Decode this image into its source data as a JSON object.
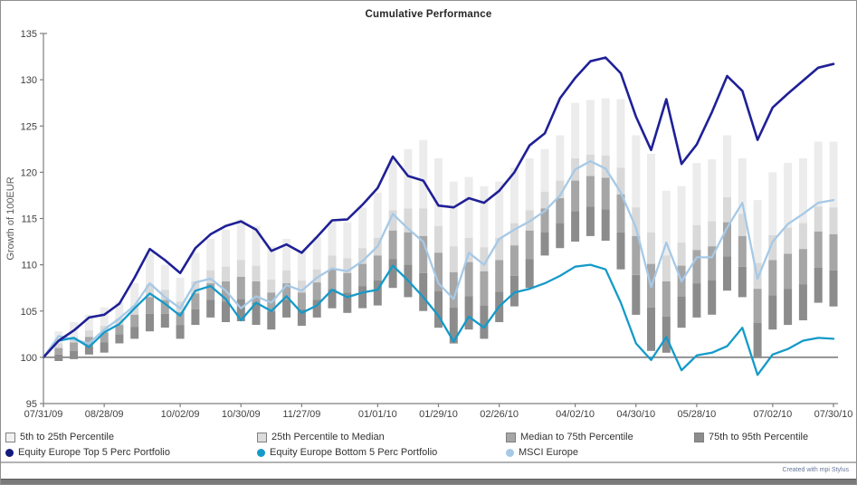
{
  "chart_data": {
    "type": "combo (floating percentile bar bands + line series)",
    "title": "Cumulative Performance",
    "ylabel": "Growth of 100EUR",
    "xlabel": "",
    "ylim": [
      95,
      135
    ],
    "y_ticks": [
      95,
      100,
      105,
      110,
      115,
      120,
      125,
      130,
      135
    ],
    "baseline": 100,
    "grid": "off",
    "legend_position": "bottom",
    "x_unit": "weekly, 53 points (week 0 = 07/31/09 .. week 52 = 07/30/10)",
    "x_tick_labels": [
      "07/31/09",
      "08/28/09",
      "10/02/09",
      "10/30/09",
      "11/27/09",
      "01/01/10",
      "01/29/10",
      "02/26/10",
      "04/02/10",
      "04/30/10",
      "05/28/10",
      "07/02/10",
      "07/30/10"
    ],
    "x_tick_weeks": [
      0,
      4,
      9,
      13,
      17,
      22,
      26,
      30,
      35,
      39,
      43,
      48,
      52
    ],
    "bands": {
      "start_week": 1,
      "segments": [
        {
          "label": "5th to 25th Percentile",
          "from": "p5",
          "to": "p25",
          "color": "#ececec"
        },
        {
          "label": "25th Percentile to Median",
          "from": "p25",
          "to": "p50",
          "color": "#d9d9d9"
        },
        {
          "label": "Median to 75th Percentile",
          "from": "p50",
          "to": "p75",
          "color": "#a6a6a6"
        },
        {
          "label": "75th to 95th Percentile",
          "from": "p75",
          "to": "p95",
          "color": "#8c8c8c"
        }
      ],
      "p5": [
        102.8,
        103.8,
        104.6,
        105.4,
        106.0,
        108.0,
        111.3,
        110.0,
        108.6,
        111.3,
        112.8,
        113.8,
        114.9,
        114.2,
        112.0,
        112.8,
        111.5,
        113.0,
        114.8,
        114.6,
        116.2,
        117.8,
        121.5,
        122.5,
        123.5,
        121.5,
        119.0,
        119.5,
        118.5,
        119.0,
        120.5,
        121.5,
        122.5,
        124.0,
        127.5,
        127.8,
        128.0,
        127.9,
        124.0,
        122.0,
        118.0,
        118.5,
        121.0,
        121.4,
        124.0,
        121.5,
        117.0,
        120.0,
        121.0,
        121.5,
        123.3,
        123.3
      ],
      "p25": [
        101.5,
        102.2,
        102.9,
        103.4,
        104.2,
        105.6,
        107.9,
        107.3,
        106.0,
        108.2,
        109.4,
        109.8,
        110.5,
        109.9,
        108.4,
        109.4,
        108.3,
        109.5,
        111.0,
        110.7,
        111.8,
        112.9,
        115.9,
        116.1,
        116.1,
        114.2,
        112.0,
        112.9,
        111.9,
        112.9,
        114.5,
        115.9,
        117.9,
        119.1,
        121.5,
        121.9,
        121.8,
        120.5,
        116.2,
        113.5,
        111.0,
        112.4,
        114.3,
        114.7,
        117.3,
        115.5,
        110.2,
        113.2,
        114.0,
        114.5,
        116.3,
        116.2
      ],
      "p50": [
        101.0,
        101.6,
        102.2,
        102.7,
        103.5,
        104.6,
        106.5,
        106.2,
        104.9,
        106.9,
        108.0,
        108.2,
        108.7,
        108.2,
        107.0,
        108.0,
        107.0,
        108.1,
        109.5,
        109.1,
        110.1,
        111.0,
        113.7,
        113.5,
        113.1,
        111.3,
        109.2,
        110.3,
        109.3,
        110.5,
        112.1,
        113.7,
        116.1,
        117.2,
        119.1,
        119.6,
        119.4,
        117.6,
        113.1,
        110.1,
        108.2,
        109.9,
        111.6,
        112.0,
        114.6,
        113.1,
        107.4,
        110.5,
        111.2,
        111.7,
        113.6,
        113.3
      ],
      "p75": [
        100.3,
        100.7,
        101.2,
        101.6,
        102.5,
        103.3,
        104.7,
        104.7,
        103.5,
        105.2,
        106.2,
        106.0,
        106.3,
        105.9,
        105.0,
        106.2,
        105.2,
        106.2,
        107.4,
        107.0,
        107.7,
        108.3,
        110.6,
        110.0,
        109.1,
        107.2,
        105.4,
        106.6,
        105.6,
        107.1,
        108.8,
        110.6,
        113.5,
        114.5,
        115.8,
        116.3,
        116.0,
        113.5,
        108.9,
        105.4,
        104.4,
        106.6,
        108.0,
        108.3,
        110.9,
        109.8,
        103.7,
        106.7,
        107.4,
        107.9,
        109.7,
        109.4
      ],
      "p95": [
        99.6,
        99.8,
        100.3,
        100.5,
        101.5,
        102.0,
        102.8,
        103.2,
        102.0,
        103.5,
        104.3,
        103.8,
        103.9,
        103.5,
        103.0,
        104.3,
        103.4,
        104.3,
        105.3,
        104.8,
        105.3,
        105.6,
        107.5,
        106.5,
        105.0,
        103.2,
        101.5,
        103.0,
        102.0,
        103.8,
        105.5,
        107.5,
        111.0,
        111.8,
        112.5,
        113.1,
        112.6,
        109.5,
        104.6,
        100.7,
        100.5,
        103.2,
        104.3,
        104.6,
        107.2,
        106.5,
        99.9,
        103.0,
        103.5,
        104.0,
        105.9,
        105.5
      ]
    },
    "series": [
      {
        "name": "Equity Europe Top 5 Perc Portfolio",
        "color": "#1f2096",
        "width": 2.6,
        "values": [
          100.0,
          101.8,
          102.9,
          104.3,
          104.6,
          105.8,
          108.6,
          111.7,
          110.5,
          109.1,
          111.8,
          113.3,
          114.2,
          114.7,
          113.8,
          111.5,
          112.2,
          111.3,
          113.0,
          114.8,
          114.9,
          116.5,
          118.3,
          121.7,
          119.6,
          119.1,
          116.4,
          116.2,
          117.2,
          116.7,
          118.0,
          120.0,
          122.9,
          124.2,
          128.0,
          130.2,
          132.0,
          132.4,
          130.7,
          126.0,
          122.4,
          127.9,
          120.9,
          123.0,
          126.5,
          130.4,
          128.8,
          123.5,
          127.0,
          128.5,
          129.9,
          131.3,
          131.7
        ]
      },
      {
        "name": "Equity Europe Bottom 5 Perc Portfolio",
        "color": "#149ac9",
        "width": 2.3,
        "values": [
          100.0,
          101.8,
          102.1,
          101.1,
          102.7,
          103.6,
          105.3,
          106.9,
          105.8,
          104.5,
          107.2,
          107.7,
          106.3,
          104.0,
          105.9,
          105.0,
          106.6,
          104.8,
          105.6,
          107.3,
          106.5,
          107.0,
          107.3,
          109.9,
          108.3,
          106.5,
          104.5,
          101.7,
          104.4,
          103.2,
          105.5,
          107.0,
          107.4,
          108.0,
          108.8,
          109.8,
          110.0,
          109.5,
          105.9,
          101.5,
          99.7,
          102.2,
          98.6,
          100.2,
          100.5,
          101.2,
          103.2,
          98.1,
          100.3,
          100.9,
          101.8,
          102.1,
          102.0
        ]
      },
      {
        "name": "MSCI Europe",
        "color": "#a6c9e6",
        "width": 2.3,
        "values": [
          100.0,
          102.3,
          101.9,
          101.5,
          103.0,
          104.2,
          105.6,
          108.0,
          106.5,
          105.3,
          108.1,
          108.5,
          107.2,
          105.3,
          106.6,
          105.9,
          107.8,
          107.2,
          108.6,
          109.6,
          109.3,
          110.4,
          112.0,
          115.5,
          113.9,
          112.5,
          108.0,
          106.3,
          111.3,
          110.0,
          112.8,
          113.8,
          114.7,
          115.8,
          117.5,
          120.3,
          121.2,
          120.4,
          117.8,
          114.0,
          107.6,
          112.4,
          108.2,
          110.8,
          110.8,
          114.0,
          116.7,
          108.5,
          112.5,
          114.4,
          115.5,
          116.7,
          117.0
        ]
      }
    ]
  },
  "legend": {
    "row1": [
      {
        "label": "5th to 25th Percentile",
        "shape": "square",
        "color": "#f2f2f2"
      },
      {
        "label": "25th Percentile to Median",
        "shape": "square",
        "color": "#dcdcdc"
      },
      {
        "label": "Median to 75th Percentile",
        "shape": "square",
        "color": "#a6a6a6"
      },
      {
        "label": "75th to 95th Percentile",
        "shape": "square",
        "color": "#8c8c8c"
      }
    ],
    "row2": [
      {
        "label": "Equity Europe Top 5 Perc Portfolio",
        "shape": "circle",
        "color": "#141b7e"
      },
      {
        "label": "Equity Europe Bottom 5 Perc Portfolio",
        "shape": "circle",
        "color": "#149ac9"
      },
      {
        "label": "MSCI Europe",
        "shape": "circle",
        "color": "#a6c9e6"
      }
    ]
  },
  "axis_colors": {
    "axis": "#7f7f7f",
    "tick_label": "#404040",
    "baseline": "#737373",
    "ylabel": "#595959"
  },
  "footer": {
    "credit": "Created with mpi Stylus"
  }
}
